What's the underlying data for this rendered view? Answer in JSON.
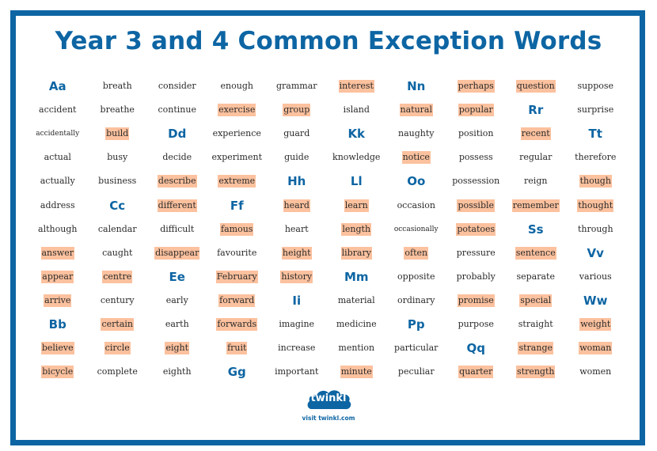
{
  "title": "Year 3 and 4 Common Exception Words",
  "colors": {
    "brand_blue": "#0d65a3",
    "highlight": "#fcc19e",
    "text": "#2a2a2a"
  },
  "columns": [
    [
      {
        "text": "Aa",
        "type": "letter"
      },
      {
        "text": "accident"
      },
      {
        "text": "accidentally",
        "small": true
      },
      {
        "text": "actual"
      },
      {
        "text": "actually"
      },
      {
        "text": "address"
      },
      {
        "text": "although"
      },
      {
        "text": "answer",
        "hl": true
      },
      {
        "text": "appear",
        "hl": true
      },
      {
        "text": "arrive",
        "hl": true
      },
      {
        "text": "Bb",
        "type": "letter"
      },
      {
        "text": "believe",
        "hl": true
      },
      {
        "text": "bicycle",
        "hl": true
      }
    ],
    [
      {
        "text": "breath"
      },
      {
        "text": "breathe"
      },
      {
        "text": "build",
        "hl": true
      },
      {
        "text": "busy"
      },
      {
        "text": "business"
      },
      {
        "text": "Cc",
        "type": "letter"
      },
      {
        "text": "calendar"
      },
      {
        "text": "caught"
      },
      {
        "text": "centre",
        "hl": true
      },
      {
        "text": "century"
      },
      {
        "text": "certain",
        "hl": true
      },
      {
        "text": "circle",
        "hl": true
      },
      {
        "text": "complete"
      }
    ],
    [
      {
        "text": "consider"
      },
      {
        "text": "continue"
      },
      {
        "text": "Dd",
        "type": "letter"
      },
      {
        "text": "decide"
      },
      {
        "text": "describe",
        "hl": true
      },
      {
        "text": "different",
        "hl": true
      },
      {
        "text": "difficult"
      },
      {
        "text": "disappear",
        "hl": true
      },
      {
        "text": "Ee",
        "type": "letter"
      },
      {
        "text": "early"
      },
      {
        "text": "earth"
      },
      {
        "text": "eight",
        "hl": true
      },
      {
        "text": "eighth"
      }
    ],
    [
      {
        "text": "enough"
      },
      {
        "text": "exercise",
        "hl": true
      },
      {
        "text": "experience"
      },
      {
        "text": "experiment"
      },
      {
        "text": "extreme",
        "hl": true
      },
      {
        "text": "Ff",
        "type": "letter"
      },
      {
        "text": "famous",
        "hl": true
      },
      {
        "text": "favourite"
      },
      {
        "text": "February",
        "hl": true
      },
      {
        "text": "forward",
        "hl": true
      },
      {
        "text": "forwards",
        "hl": true
      },
      {
        "text": "fruit",
        "hl": true
      },
      {
        "text": "Gg",
        "type": "letter"
      }
    ],
    [
      {
        "text": "grammar"
      },
      {
        "text": "group",
        "hl": true
      },
      {
        "text": "guard"
      },
      {
        "text": "guide"
      },
      {
        "text": "Hh",
        "type": "letter"
      },
      {
        "text": "heard",
        "hl": true
      },
      {
        "text": "heart"
      },
      {
        "text": "height",
        "hl": true
      },
      {
        "text": "history",
        "hl": true
      },
      {
        "text": "Ii",
        "type": "letter"
      },
      {
        "text": "imagine"
      },
      {
        "text": "increase"
      },
      {
        "text": "important"
      }
    ],
    [
      {
        "text": "interest",
        "hl": true
      },
      {
        "text": "island"
      },
      {
        "text": "Kk",
        "type": "letter"
      },
      {
        "text": "knowledge"
      },
      {
        "text": "Ll",
        "type": "letter"
      },
      {
        "text": "learn",
        "hl": true
      },
      {
        "text": "length",
        "hl": true
      },
      {
        "text": "library",
        "hl": true
      },
      {
        "text": "Mm",
        "type": "letter"
      },
      {
        "text": "material"
      },
      {
        "text": "medicine"
      },
      {
        "text": "mention"
      },
      {
        "text": "minute",
        "hl": true
      }
    ],
    [
      {
        "text": "Nn",
        "type": "letter"
      },
      {
        "text": "natural",
        "hl": true
      },
      {
        "text": "naughty"
      },
      {
        "text": "notice",
        "hl": true
      },
      {
        "text": "Oo",
        "type": "letter"
      },
      {
        "text": "occasion"
      },
      {
        "text": "occasionally",
        "small": true
      },
      {
        "text": "often",
        "hl": true
      },
      {
        "text": "opposite"
      },
      {
        "text": "ordinary"
      },
      {
        "text": "Pp",
        "type": "letter"
      },
      {
        "text": "particular"
      },
      {
        "text": "peculiar"
      }
    ],
    [
      {
        "text": "perhaps",
        "hl": true
      },
      {
        "text": "popular",
        "hl": true
      },
      {
        "text": "position"
      },
      {
        "text": "possess"
      },
      {
        "text": "possession"
      },
      {
        "text": "possible",
        "hl": true
      },
      {
        "text": "potatoes",
        "hl": true
      },
      {
        "text": "pressure"
      },
      {
        "text": "probably"
      },
      {
        "text": "promise",
        "hl": true
      },
      {
        "text": "purpose"
      },
      {
        "text": "Qq",
        "type": "letter"
      },
      {
        "text": "quarter",
        "hl": true
      }
    ],
    [
      {
        "text": "question",
        "hl": true
      },
      {
        "text": "Rr",
        "type": "letter"
      },
      {
        "text": "recent",
        "hl": true
      },
      {
        "text": "regular"
      },
      {
        "text": "reign"
      },
      {
        "text": "remember",
        "hl": true
      },
      {
        "text": "Ss",
        "type": "letter"
      },
      {
        "text": "sentence",
        "hl": true
      },
      {
        "text": "separate"
      },
      {
        "text": "special",
        "hl": true
      },
      {
        "text": "straight"
      },
      {
        "text": "strange",
        "hl": true
      },
      {
        "text": "strength",
        "hl": true
      }
    ],
    [
      {
        "text": "suppose"
      },
      {
        "text": "surprise"
      },
      {
        "text": "Tt",
        "type": "letter"
      },
      {
        "text": "therefore"
      },
      {
        "text": "though",
        "hl": true
      },
      {
        "text": "thought",
        "hl": true
      },
      {
        "text": "through"
      },
      {
        "text": "Vv",
        "type": "letter"
      },
      {
        "text": "various"
      },
      {
        "text": "Ww",
        "type": "letter"
      },
      {
        "text": "weight",
        "hl": true
      },
      {
        "text": "woman",
        "hl": true
      },
      {
        "text": "women"
      }
    ]
  ],
  "footer": {
    "logo_text": "twinkl",
    "logo_icon": "cloud-logo-icon",
    "visit_text": "visit twinkl.com"
  }
}
